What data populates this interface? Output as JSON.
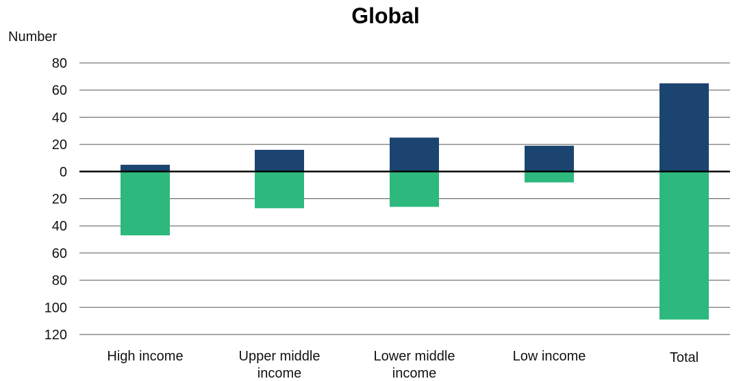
{
  "chart_data": {
    "type": "bar",
    "title": "Global",
    "ylabel": "Number",
    "xlabel": "",
    "ylim": [
      -120,
      80
    ],
    "y_ticks": [
      80,
      60,
      40,
      20,
      0,
      -20,
      -40,
      -60,
      -80,
      -100,
      -120
    ],
    "y_tick_labels": [
      "80",
      "60",
      "40",
      "20",
      "0",
      "20",
      "40",
      "60",
      "80",
      "100",
      "120"
    ],
    "grid": true,
    "legend": "none",
    "stacked": "diverging",
    "categories": [
      [
        "High income"
      ],
      [
        "Upper middle",
        "income"
      ],
      [
        "Lower middle",
        "income"
      ],
      [
        "Low income"
      ],
      [
        "Total"
      ]
    ],
    "series": [
      {
        "color": "#1b4470",
        "values": [
          5,
          16,
          25,
          19,
          65
        ]
      },
      {
        "color": "#2db87d",
        "values": [
          -47,
          -27,
          -26,
          -8,
          -109
        ]
      }
    ]
  }
}
